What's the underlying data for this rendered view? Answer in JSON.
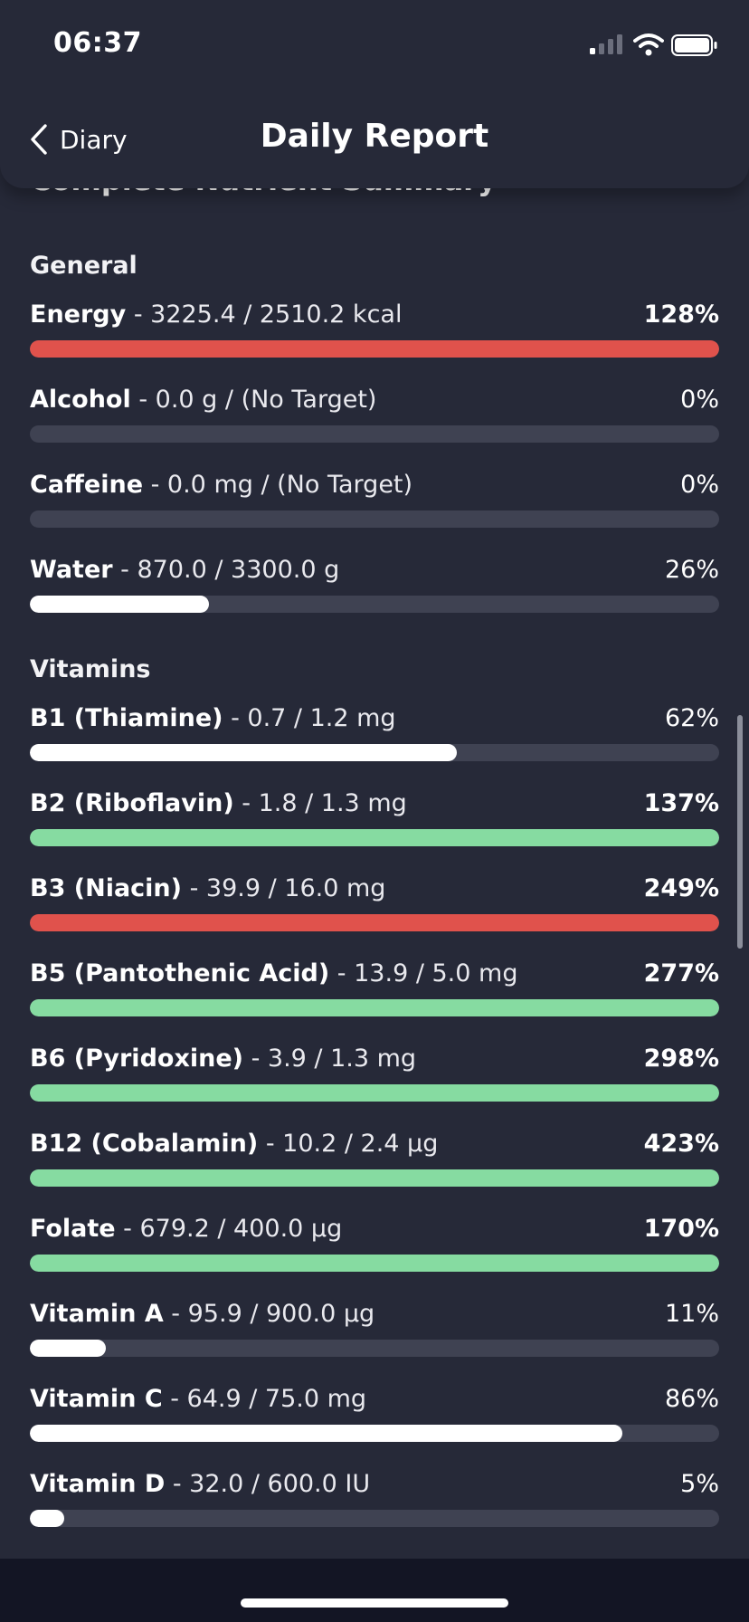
{
  "status_bar": {
    "time": "06:37"
  },
  "nav": {
    "back_label": "Diary",
    "title": "Daily Report"
  },
  "summary": {
    "title": "Complete Nutrient Summary"
  },
  "sections": [
    {
      "title": "General",
      "items": [
        {
          "name": "Energy",
          "detail": " - 3225.4 / 2510.2 kcal",
          "percent": "128%",
          "level": 1.0,
          "status": "over"
        },
        {
          "name": "Alcohol",
          "detail": " - 0.0 g / (No Target)",
          "percent": "0%",
          "level": 0.0,
          "status": "none"
        },
        {
          "name": "Caffeine",
          "detail": " - 0.0 mg / (No Target)",
          "percent": "0%",
          "level": 0.0,
          "status": "none"
        },
        {
          "name": "Water",
          "detail": " - 870.0 / 3300.0 g",
          "percent": "26%",
          "level": 0.26,
          "status": "partial"
        }
      ]
    },
    {
      "title": "Vitamins",
      "items": [
        {
          "name": "B1 (Thiamine)",
          "detail": " - 0.7 / 1.2 mg",
          "percent": "62%",
          "level": 0.62,
          "status": "partial"
        },
        {
          "name": "B2 (Riboflavin)",
          "detail": " - 1.8 / 1.3 mg",
          "percent": "137%",
          "level": 1.0,
          "status": "good"
        },
        {
          "name": "B3 (Niacin)",
          "detail": " - 39.9 / 16.0 mg",
          "percent": "249%",
          "level": 1.0,
          "status": "over"
        },
        {
          "name": "B5 (Pantothenic Acid)",
          "detail": " - 13.9 / 5.0 mg",
          "percent": "277%",
          "level": 1.0,
          "status": "good"
        },
        {
          "name": "B6 (Pyridoxine)",
          "detail": " - 3.9 / 1.3 mg",
          "percent": "298%",
          "level": 1.0,
          "status": "good"
        },
        {
          "name": "B12 (Cobalamin)",
          "detail": " - 10.2 / 2.4 µg",
          "percent": "423%",
          "level": 1.0,
          "status": "good"
        },
        {
          "name": "Folate",
          "detail": " - 679.2 / 400.0 µg",
          "percent": "170%",
          "level": 1.0,
          "status": "good"
        },
        {
          "name": "Vitamin A",
          "detail": " - 95.9 / 900.0 µg",
          "percent": "11%",
          "level": 0.11,
          "status": "partial"
        },
        {
          "name": "Vitamin C",
          "detail": " - 64.9 / 75.0 mg",
          "percent": "86%",
          "level": 0.86,
          "status": "partial"
        },
        {
          "name": "Vitamin D",
          "detail": " - 32.0 / 600.0 IU",
          "percent": "5%",
          "level": 0.05,
          "status": "partial"
        }
      ]
    }
  ],
  "colors": {
    "background": "#262938",
    "track": "#3f4252",
    "over": "#e0524c",
    "good": "#86dba1",
    "partial": "#ffffff"
  },
  "icons": {
    "back": "chevron-left-icon",
    "collapse": "chevron-up-icon",
    "signal": "cellular-signal-icon",
    "wifi": "wifi-icon",
    "battery": "battery-icon"
  }
}
